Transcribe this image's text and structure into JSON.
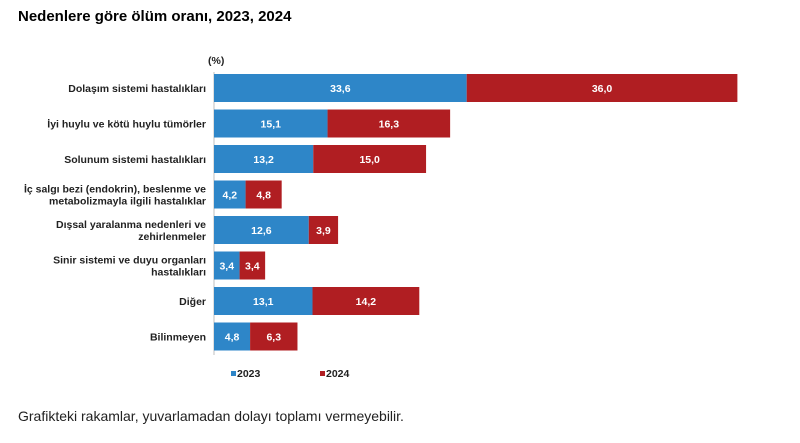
{
  "title": "Nedenlere göre ölüm oranı, 2023, 2024",
  "note": "Grafikteki rakamlar, yuvarlamadan dolayı toplamı vermeyebilir.",
  "chart_data": {
    "type": "bar",
    "orientation": "horizontal",
    "stacked": true,
    "unit_label": "(%)",
    "categories": [
      [
        "Dolaşım sistemi hastalıkları"
      ],
      [
        "İyi huylu ve kötü huylu tümörler"
      ],
      [
        "Solunum sistemi hastalıkları"
      ],
      [
        "İç salgı bezi (endokrin), beslenme ve",
        "metabolizmayla ilgili hastalıklar"
      ],
      [
        "Dışsal yaralanma nedenleri ve",
        "zehirlenmeler"
      ],
      [
        "Sinir sistemi ve duyu organları",
        "hastalıkları"
      ],
      [
        "Diğer"
      ],
      [
        "Bilinmeyen"
      ]
    ],
    "series": [
      {
        "name": "2023",
        "color": "#2E86C8",
        "values": [
          33.6,
          15.1,
          13.2,
          4.2,
          12.6,
          3.4,
          13.1,
          4.8
        ],
        "labels": [
          "33,6",
          "15,1",
          "13,2",
          "4,2",
          "12,6",
          "3,4",
          "13,1",
          "4,8"
        ]
      },
      {
        "name": "2024",
        "color": "#B01E22",
        "values": [
          36.0,
          16.3,
          15.0,
          4.8,
          3.9,
          3.4,
          14.2,
          6.3
        ],
        "labels": [
          "36,0",
          "16,3",
          "15,0",
          "4,8",
          "3,9",
          "3,4",
          "14,2",
          "6,3"
        ]
      }
    ],
    "grid": false,
    "legend_position": "bottom"
  }
}
